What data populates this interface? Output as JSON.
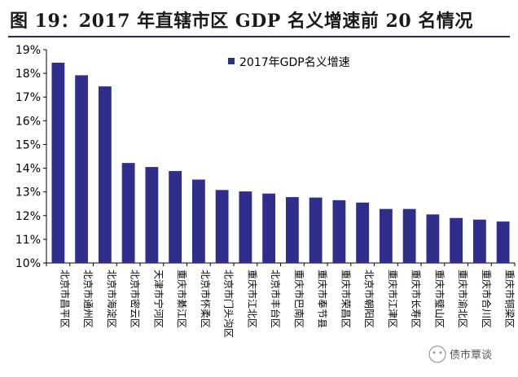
{
  "figure": {
    "title": "图 19：2017 年直辖市区 GDP 名义增速前 20 名情况",
    "watermark": "债市覃谈"
  },
  "chart_data": {
    "type": "bar",
    "title": "2017年直辖市区GDP名义增速前20名情况",
    "legend": "2017年GDP名义增速",
    "legend_position": "top-right",
    "xlabel": "",
    "ylabel": "",
    "ylim": [
      10,
      19
    ],
    "y_ticks": [
      "10%",
      "11%",
      "12%",
      "13%",
      "14%",
      "15%",
      "16%",
      "17%",
      "18%",
      "19%"
    ],
    "bar_color": "#2e2f8c",
    "categories": [
      "北京市昌平区",
      "北京市通州区",
      "北京市海淀区",
      "北京市密云区",
      "天津市宁河区",
      "重庆市綦江区",
      "北京市怀柔区",
      "北京市门头沟区",
      "重庆市江北区",
      "北京市丰台区",
      "重庆市巴南区",
      "重庆市奉节县",
      "重庆市荣昌区",
      "北京市朝阳区",
      "重庆市江津区",
      "重庆市长寿区",
      "重庆市璧山区",
      "重庆市渝北区",
      "重庆市合川区",
      "重庆市铜梁区"
    ],
    "values": [
      18.45,
      17.92,
      17.45,
      14.22,
      14.05,
      13.88,
      13.52,
      13.08,
      13.02,
      12.93,
      12.78,
      12.76,
      12.65,
      12.55,
      12.28,
      12.28,
      12.05,
      11.9,
      11.83,
      11.75
    ]
  }
}
